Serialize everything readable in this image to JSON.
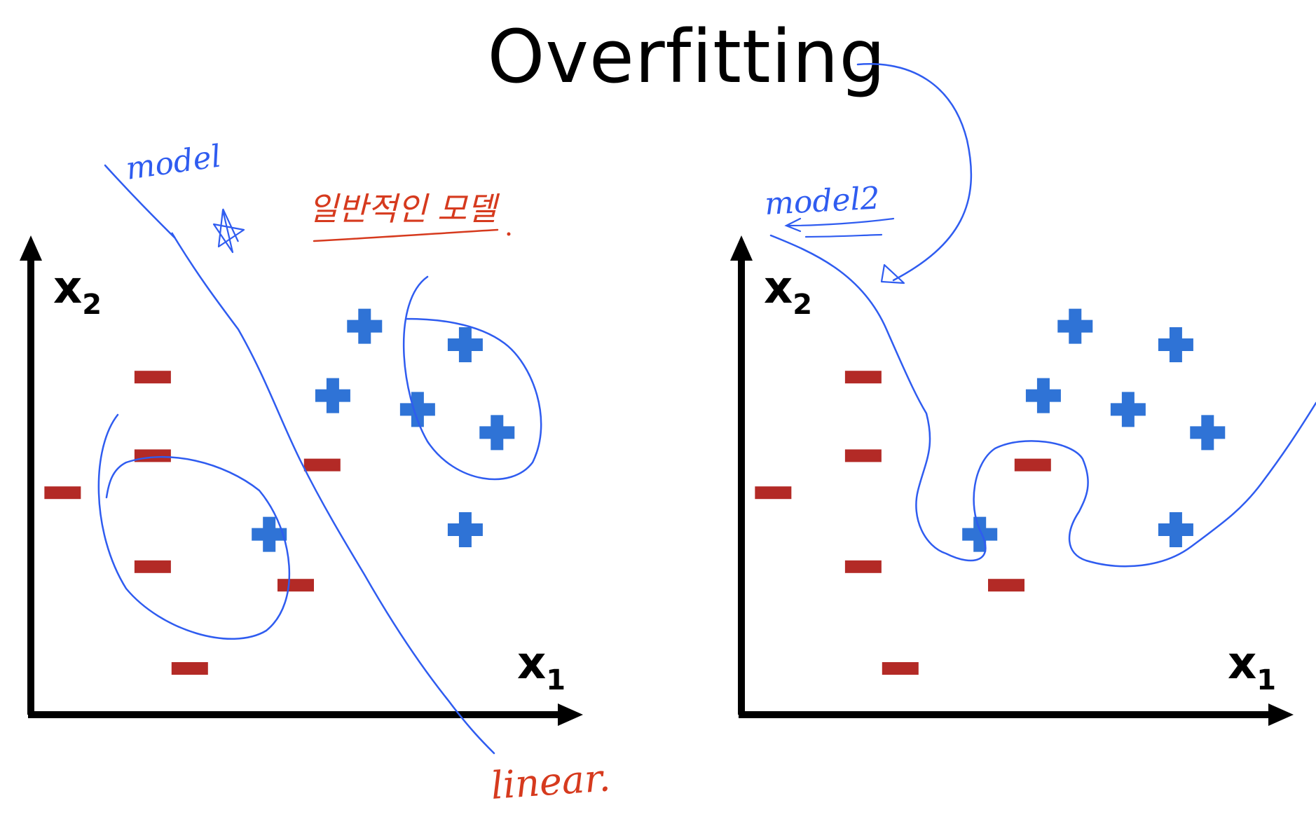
{
  "title": "Overfitting",
  "colors": {
    "axis": "#000000",
    "plus": "#2f73d6",
    "minus": "#b32a26",
    "ink_blue": "#2f5cf0",
    "ink_red": "#d63a1e"
  },
  "panels": [
    {
      "id": "left",
      "x_label": "x",
      "x_sub": "1",
      "y_label": "x",
      "y_sub": "2"
    },
    {
      "id": "right",
      "x_label": "x",
      "x_sub": "1",
      "y_label": "x",
      "y_sub": "2"
    }
  ],
  "annotations": {
    "model": "model",
    "general_model": "일반적인 모델",
    "linear": "linear.",
    "model2": "model2"
  },
  "chart_data": {
    "type": "scatter",
    "x_range": [
      0,
      100
    ],
    "y_range": [
      0,
      100
    ],
    "classes": [
      {
        "symbol": "+",
        "points": [
          [
            63,
            84
          ],
          [
            82,
            80
          ],
          [
            57,
            69
          ],
          [
            73,
            66
          ],
          [
            88,
            61
          ],
          [
            82,
            40
          ],
          [
            45,
            39
          ]
        ]
      },
      {
        "symbol": "-",
        "points": [
          [
            23,
            73
          ],
          [
            23,
            56
          ],
          [
            55,
            54
          ],
          [
            6,
            48
          ],
          [
            23,
            32
          ],
          [
            50,
            28
          ],
          [
            30,
            10
          ]
        ]
      }
    ]
  }
}
